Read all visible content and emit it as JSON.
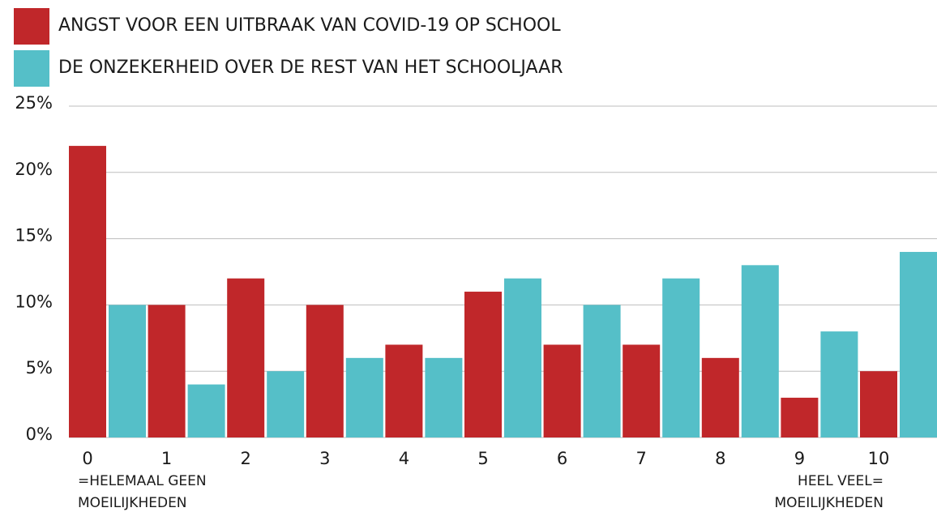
{
  "chart_data": {
    "type": "bar",
    "categories": [
      "0",
      "1",
      "2",
      "3",
      "4",
      "5",
      "6",
      "7",
      "8",
      "9",
      "10"
    ],
    "series": [
      {
        "name": "ANGST VOOR EEN UITBRAAK VAN COVID-19 OP SCHOOL",
        "color": "#c0272a",
        "values": [
          22,
          10,
          12,
          10,
          7,
          11,
          7,
          7,
          6,
          3,
          5
        ]
      },
      {
        "name": "DE ONZEKERHEID OVER DE REST VAN HET SCHOOLJAAR",
        "color": "#55bfc8",
        "values": [
          10,
          4,
          5,
          6,
          6,
          12,
          10,
          12,
          13,
          8,
          14
        ]
      }
    ],
    "ylim": [
      0,
      25
    ],
    "yticks": [
      {
        "value": 0,
        "label": "0%"
      },
      {
        "value": 5,
        "label": "5%"
      },
      {
        "value": 10,
        "label": "10%"
      },
      {
        "value": 15,
        "label": "15%"
      },
      {
        "value": 20,
        "label": "20%"
      },
      {
        "value": 25,
        "label": "25%"
      }
    ],
    "grid": true,
    "legend": "top-left",
    "annotations": [
      [
        "=HELEMAAL GEEN",
        "MOEILIJKHEDEN"
      ],
      [
        "HEEL VEEL=",
        "MOEILIJKHEDEN"
      ]
    ]
  }
}
